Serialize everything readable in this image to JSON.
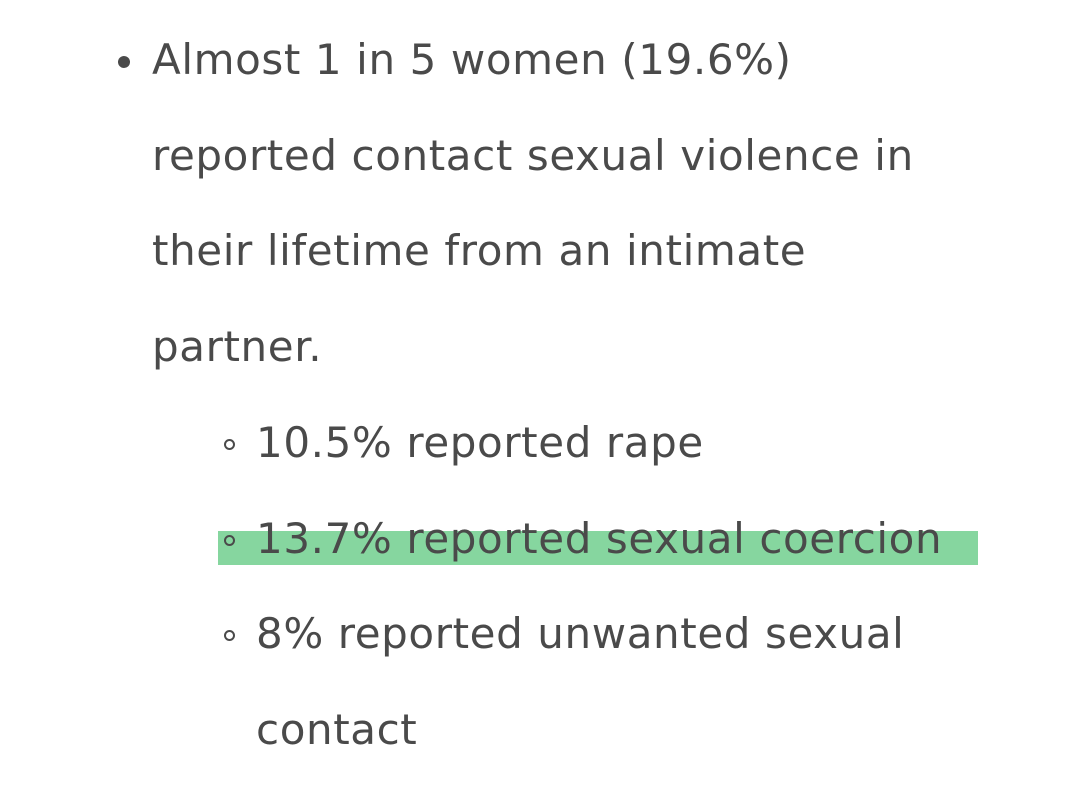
{
  "list": {
    "items": [
      {
        "lines": [
          "Almost 1 in 5 women (19.6%)",
          "reported contact sexual violence in",
          "their lifetime from an intimate",
          "partner."
        ],
        "subitems": [
          {
            "lines": [
              "10.5% reported rape"
            ],
            "highlighted": false
          },
          {
            "lines": [
              "13.7% reported sexual coercion"
            ],
            "highlighted": true
          },
          {
            "lines": [
              "8% reported unwanted sexual",
              "contact"
            ],
            "highlighted": false
          }
        ]
      }
    ]
  }
}
